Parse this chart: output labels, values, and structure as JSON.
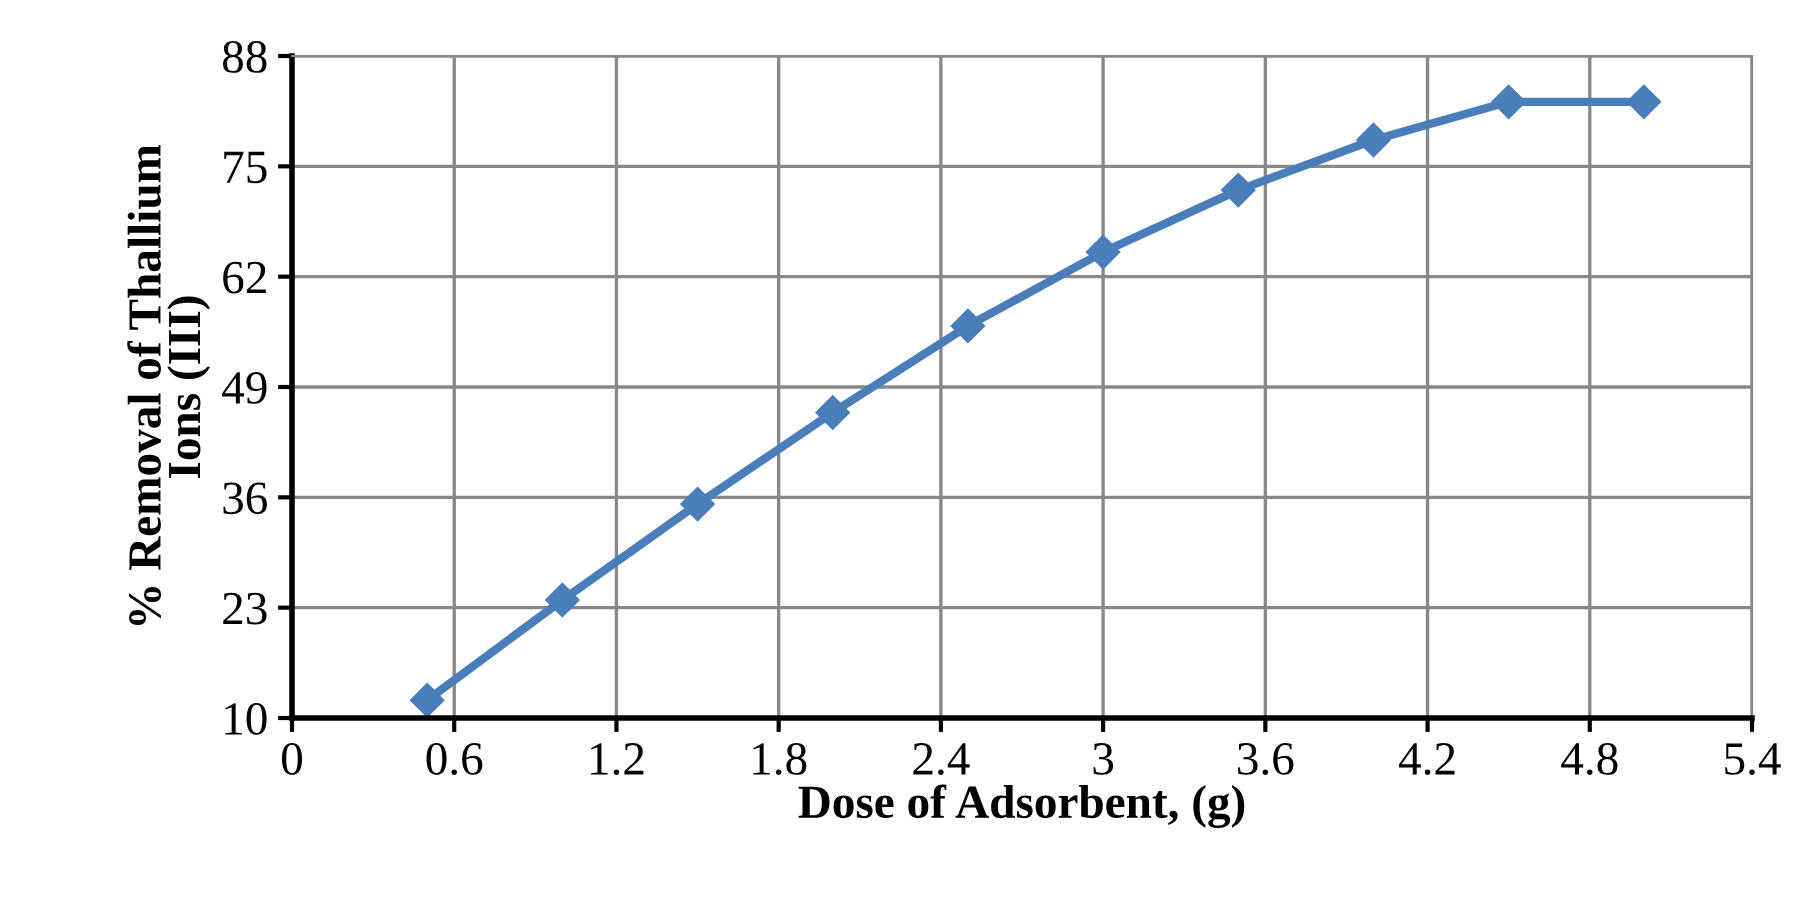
{
  "chart_data": {
    "type": "line",
    "xlabel": "Dose of Adsorbent, (g)",
    "ylabel": "% Removal of Thallium\nIons (III)",
    "x": [
      0.5,
      1.0,
      1.5,
      2.0,
      2.5,
      3.0,
      3.5,
      4.0,
      4.5,
      5.0
    ],
    "series": [
      {
        "color": "#4a7ebb",
        "values": [
          12.1,
          23.9,
          35.2,
          46.0,
          56.2,
          64.9,
          72.2,
          78.1,
          82.6,
          82.6
        ]
      }
    ],
    "xlim": [
      0,
      5.4
    ],
    "xticks": [
      0,
      0.6,
      1.2,
      1.8,
      2.4,
      3,
      3.6,
      4.2,
      4.8,
      5.4
    ],
    "ylim": [
      10,
      88
    ],
    "yticks": [
      10,
      23,
      36,
      49,
      62,
      75,
      88
    ],
    "grid": true,
    "marker": "diamond",
    "line_style": "solid",
    "legend": false
  }
}
